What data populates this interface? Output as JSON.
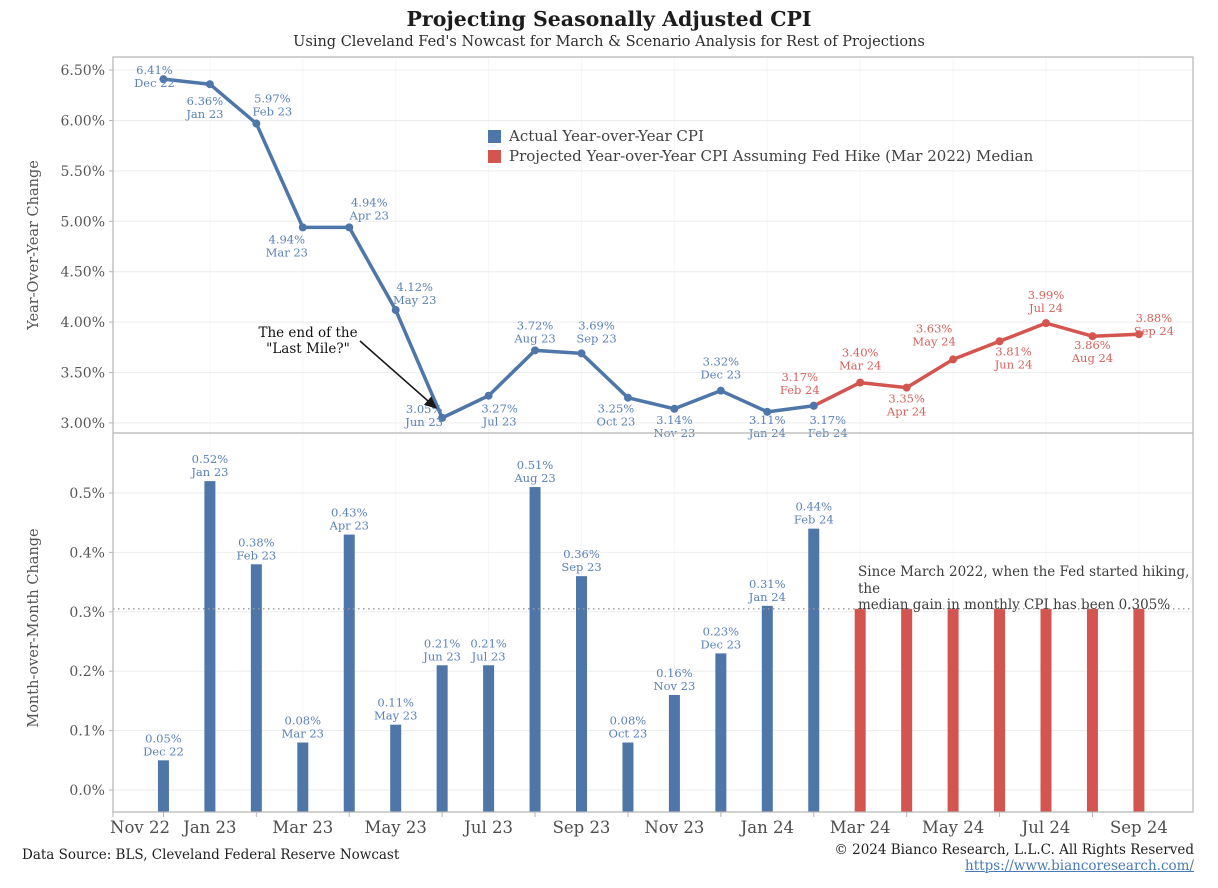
{
  "header": {
    "title": "Projecting Seasonally Adjusted CPI",
    "subtitle": "Using Cleveland Fed's Nowcast for March & Scenario Analysis for Rest of Projections"
  },
  "colors": {
    "actual": "#4e76a8",
    "projected": "#d45550",
    "actual_label": "#5b82b6",
    "projected_label": "#d4625e",
    "axis_text": "#565656",
    "xaxis_text": "#4d4d4d",
    "grid": "#ededed",
    "grid_vertical": "#f6f6f6",
    "border": "#b5b5b5",
    "median_dotted": "#999999",
    "arrow": "#1a1a1a"
  },
  "x_axis": {
    "tick_labels": [
      "Nov 22",
      "Jan 23",
      "Mar 23",
      "May 23",
      "Jul 23",
      "Sep 23",
      "Nov 23",
      "Jan 24",
      "Mar 24",
      "May 24",
      "Jul 24",
      "Sep 24"
    ]
  },
  "chart_data": [
    {
      "type": "line",
      "panel": "yoy",
      "title": "Year-over-Year CPI",
      "ylabel": "Year-Over-Year Change",
      "ylim": [
        2.9,
        6.63
      ],
      "yticks": [
        3.0,
        3.5,
        4.0,
        4.5,
        5.0,
        5.5,
        6.0,
        6.5
      ],
      "grid": true,
      "legend_position": "upper-middle",
      "legend": [
        {
          "series": "actual",
          "label": "Actual Year-over-Year CPI"
        },
        {
          "series": "projected",
          "label": "Projected Year-over-Year CPI Assuming Fed Hike (Mar 2022) Median"
        }
      ],
      "annotation": {
        "line1": "The end of the",
        "line2": "\"Last Mile?\""
      },
      "series": [
        {
          "name": "actual",
          "points": [
            {
              "month": "Dec 22",
              "m": 1,
              "value": 6.41,
              "lp": [
                -9,
                -1
              ]
            },
            {
              "month": "Jan 23",
              "m": 2,
              "value": 6.36,
              "lp": [
                -5,
                25
              ]
            },
            {
              "month": "Feb 23",
              "m": 3,
              "value": 5.97,
              "lp": [
                16,
                -17
              ]
            },
            {
              "month": "Mar 23",
              "m": 4,
              "value": 4.94,
              "lp": [
                -16,
                20
              ]
            },
            {
              "month": "Apr 23",
              "m": 5,
              "value": 4.94,
              "lp": [
                20,
                -17
              ]
            },
            {
              "month": "May 23",
              "m": 6,
              "value": 4.12,
              "lp": [
                19,
                -15
              ]
            },
            {
              "month": "Jun 23",
              "m": 7,
              "value": 3.05,
              "lp": [
                -18,
                -1
              ]
            },
            {
              "month": "Jul 23",
              "m": 8,
              "value": 3.27,
              "lp": [
                11,
                21
              ]
            },
            {
              "month": "Aug 23",
              "m": 9,
              "value": 3.72,
              "lp": [
                0,
                -17
              ]
            },
            {
              "month": "Sep 23",
              "m": 10,
              "value": 3.69,
              "lp": [
                15,
                -20
              ]
            },
            {
              "month": "Oct 23",
              "m": 11,
              "value": 3.25,
              "lp": [
                -12,
                19
              ]
            },
            {
              "month": "Nov 23",
              "m": 12,
              "value": 3.14,
              "lp": [
                0,
                19
              ]
            },
            {
              "month": "Dec 23",
              "m": 13,
              "value": 3.32,
              "lp": [
                0,
                -21
              ]
            },
            {
              "month": "Jan 24",
              "m": 14,
              "value": 3.11,
              "lp": [
                0,
                16
              ]
            },
            {
              "month": "Feb 24",
              "m": 15,
              "value": 3.17,
              "lp": [
                14,
                22
              ]
            }
          ]
        },
        {
          "name": "projected",
          "points": [
            {
              "month": "Feb 24",
              "m": 15,
              "value": 3.17,
              "lp": [
                -14,
                -21
              ]
            },
            {
              "month": "Mar 24",
              "m": 16,
              "value": 3.4,
              "lp": [
                0,
                -22
              ]
            },
            {
              "month": "Apr 24",
              "m": 17,
              "value": 3.35,
              "lp": [
                0,
                19
              ]
            },
            {
              "month": "May 24",
              "m": 18,
              "value": 3.63,
              "lp": [
                -19,
                -23
              ]
            },
            {
              "month": "Jun 24",
              "m": 19,
              "value": 3.81,
              "lp": [
                14,
                18
              ]
            },
            {
              "month": "Jul 24",
              "m": 20,
              "value": 3.99,
              "lp": [
                0,
                -20
              ]
            },
            {
              "month": "Aug 24",
              "m": 21,
              "value": 3.86,
              "lp": [
                0,
                17
              ]
            },
            {
              "month": "Sep 24",
              "m": 22,
              "value": 3.88,
              "lp": [
                15,
                -8
              ]
            }
          ]
        }
      ]
    },
    {
      "type": "bar",
      "panel": "mom",
      "title": "Month-over-Month CPI",
      "ylabel": "Month-over-Month Change",
      "ylim": [
        -0.037,
        0.601
      ],
      "yticks": [
        0.0,
        0.1,
        0.2,
        0.3,
        0.4,
        0.5
      ],
      "grid": true,
      "median": {
        "value": 0.305,
        "note_line1": "Since March 2022, when the Fed started hiking, the",
        "note_line2": "median gain in monthly CPI has been 0.305%"
      },
      "bars": [
        {
          "month": "Dec 22",
          "m": 1,
          "value": 0.05,
          "series": "actual",
          "label": true
        },
        {
          "month": "Jan 23",
          "m": 2,
          "value": 0.52,
          "series": "actual",
          "label": true
        },
        {
          "month": "Feb 23",
          "m": 3,
          "value": 0.38,
          "series": "actual",
          "label": true
        },
        {
          "month": "Mar 23",
          "m": 4,
          "value": 0.08,
          "series": "actual",
          "label": true
        },
        {
          "month": "Apr 23",
          "m": 5,
          "value": 0.43,
          "series": "actual",
          "label": true
        },
        {
          "month": "May 23",
          "m": 6,
          "value": 0.11,
          "series": "actual",
          "label": true
        },
        {
          "month": "Jun 23",
          "m": 7,
          "value": 0.21,
          "series": "actual",
          "label": true
        },
        {
          "month": "Jul 23",
          "m": 8,
          "value": 0.21,
          "series": "actual",
          "label": true
        },
        {
          "month": "Aug 23",
          "m": 9,
          "value": 0.51,
          "series": "actual",
          "label": true
        },
        {
          "month": "Sep 23",
          "m": 10,
          "value": 0.36,
          "series": "actual",
          "label": true
        },
        {
          "month": "Oct 23",
          "m": 11,
          "value": 0.08,
          "series": "actual",
          "label": true
        },
        {
          "month": "Nov 23",
          "m": 12,
          "value": 0.16,
          "series": "actual",
          "label": true
        },
        {
          "month": "Dec 23",
          "m": 13,
          "value": 0.23,
          "series": "actual",
          "label": true
        },
        {
          "month": "Jan 24",
          "m": 14,
          "value": 0.31,
          "series": "actual",
          "label": true
        },
        {
          "month": "Feb 24",
          "m": 15,
          "value": 0.44,
          "series": "actual",
          "label": true
        },
        {
          "month": "Mar 24",
          "m": 16,
          "value": 0.305,
          "series": "projected",
          "label": false
        },
        {
          "month": "Apr 24",
          "m": 17,
          "value": 0.305,
          "series": "projected",
          "label": false
        },
        {
          "month": "May 24",
          "m": 18,
          "value": 0.305,
          "series": "projected",
          "label": false
        },
        {
          "month": "Jun 24",
          "m": 19,
          "value": 0.305,
          "series": "projected",
          "label": false
        },
        {
          "month": "Jul 24",
          "m": 20,
          "value": 0.305,
          "series": "projected",
          "label": false
        },
        {
          "month": "Aug 24",
          "m": 21,
          "value": 0.305,
          "series": "projected",
          "label": false
        },
        {
          "month": "Sep 24",
          "m": 22,
          "value": 0.305,
          "series": "projected",
          "label": false
        }
      ]
    }
  ],
  "footer": {
    "source": "Data Source: BLS, Cleveland Federal Reserve Nowcast",
    "copyright": "© 2024 Bianco Research, L.L.C. All Rights Reserved",
    "link": "https://www.biancoresearch.com/"
  }
}
